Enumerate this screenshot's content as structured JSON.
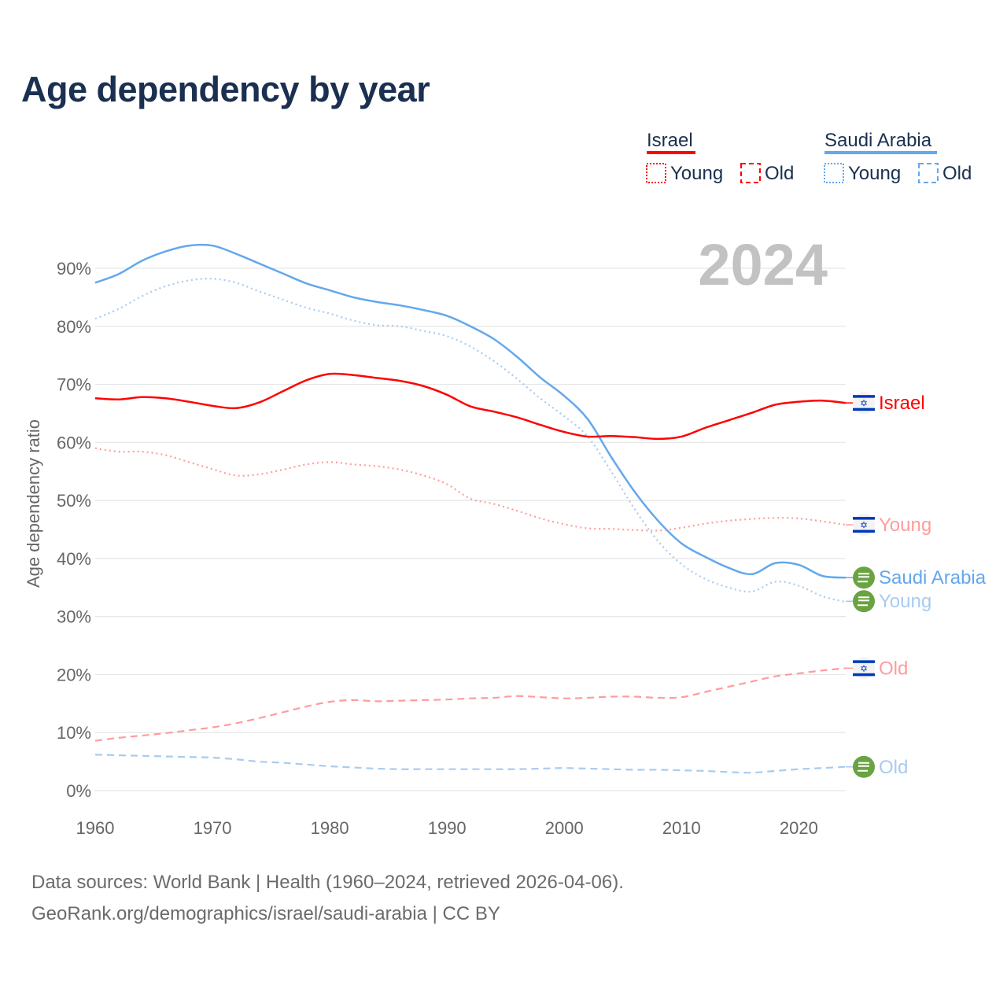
{
  "chart_data": {
    "type": "line",
    "title": "Age dependency by year",
    "ylabel": "Age dependency ratio",
    "xlabel": "",
    "year_overlay": "2024",
    "xlim": [
      1960,
      2024
    ],
    "ylim": [
      0,
      95
    ],
    "xticks": [
      1960,
      1970,
      1980,
      1990,
      2000,
      2010,
      2020
    ],
    "yticks": [
      0,
      10,
      20,
      30,
      40,
      50,
      60,
      70,
      80,
      90
    ],
    "ytick_labels": [
      "0%",
      "10%",
      "20%",
      "30%",
      "40%",
      "50%",
      "60%",
      "70%",
      "80%",
      "90%"
    ],
    "grid": true,
    "legend_position": "top-right",
    "legend": {
      "groups": [
        {
          "country": "Israel",
          "color": "#ff0000",
          "items": [
            "Young",
            "Old"
          ]
        },
        {
          "country": "Saudi Arabia",
          "color": "#63a8ec",
          "items": [
            "Young",
            "Old"
          ]
        }
      ]
    },
    "x": [
      1960,
      1962,
      1964,
      1966,
      1968,
      1970,
      1972,
      1974,
      1976,
      1978,
      1980,
      1982,
      1984,
      1986,
      1988,
      1990,
      1992,
      1994,
      1996,
      1998,
      2000,
      2002,
      2004,
      2006,
      2008,
      2010,
      2012,
      2014,
      2016,
      2018,
      2020,
      2022,
      2024
    ],
    "series": [
      {
        "name": "Saudi Arabia",
        "end_label": "Saudi Arabia",
        "country": "Saudi Arabia",
        "style": "solid",
        "color": "#63a8ec",
        "values": [
          87.5,
          89.0,
          91.3,
          92.9,
          93.9,
          93.9,
          92.5,
          90.8,
          89.1,
          87.4,
          86.2,
          85.0,
          84.2,
          83.6,
          82.8,
          81.8,
          80.0,
          77.8,
          74.7,
          71.1,
          68.0,
          64.0,
          57.5,
          51.5,
          46.5,
          42.6,
          40.3,
          38.4,
          37.3,
          39.2,
          38.9,
          37.0,
          36.7
        ]
      },
      {
        "name": "Saudi Arabia Young",
        "end_label": "Young",
        "country": "Saudi Arabia",
        "style": "dotted",
        "color": "#a8cbf1",
        "values": [
          81.3,
          83.0,
          85.2,
          86.9,
          87.9,
          88.2,
          87.5,
          86.0,
          84.6,
          83.2,
          82.2,
          81.0,
          80.2,
          80.0,
          79.2,
          78.3,
          76.5,
          74.0,
          70.9,
          67.5,
          64.5,
          61.0,
          55.0,
          48.5,
          43.0,
          39.0,
          36.5,
          35.0,
          34.3,
          36.0,
          35.3,
          33.5,
          32.5
        ]
      },
      {
        "name": "Saudi Arabia Old",
        "end_label": "Old",
        "country": "Saudi Arabia",
        "style": "dashed",
        "color": "#a8cbf1",
        "values": [
          6.2,
          6.1,
          6.0,
          5.9,
          5.8,
          5.7,
          5.4,
          5.0,
          4.8,
          4.5,
          4.2,
          4.0,
          3.8,
          3.7,
          3.7,
          3.7,
          3.7,
          3.7,
          3.7,
          3.8,
          3.9,
          3.8,
          3.7,
          3.6,
          3.6,
          3.5,
          3.4,
          3.2,
          3.1,
          3.4,
          3.7,
          3.9,
          4.1
        ]
      },
      {
        "name": "Israel",
        "end_label": "Israel",
        "country": "Israel",
        "style": "solid",
        "color": "#ff0000",
        "values": [
          67.6,
          67.4,
          67.8,
          67.6,
          67.0,
          66.3,
          65.9,
          66.9,
          68.8,
          70.7,
          71.8,
          71.6,
          71.1,
          70.6,
          69.7,
          68.2,
          66.2,
          65.3,
          64.3,
          63.0,
          61.8,
          61.0,
          61.1,
          60.9,
          60.6,
          61.0,
          62.5,
          63.8,
          65.1,
          66.5,
          67.0,
          67.2,
          66.8
        ]
      },
      {
        "name": "Israel Young",
        "end_label": "Young",
        "country": "Israel",
        "style": "dotted",
        "color": "#ff9c9c",
        "values": [
          59.0,
          58.4,
          58.4,
          57.8,
          56.6,
          55.4,
          54.3,
          54.5,
          55.3,
          56.2,
          56.6,
          56.2,
          55.9,
          55.3,
          54.3,
          52.8,
          50.3,
          49.4,
          48.2,
          46.9,
          45.9,
          45.2,
          45.1,
          44.9,
          44.8,
          45.3,
          46.0,
          46.5,
          46.8,
          47.0,
          46.9,
          46.4,
          45.8
        ]
      },
      {
        "name": "Israel Old",
        "end_label": "Old",
        "country": "Israel",
        "style": "dashed",
        "color": "#ff9c9c",
        "values": [
          8.6,
          9.1,
          9.5,
          9.9,
          10.4,
          10.9,
          11.6,
          12.5,
          13.5,
          14.5,
          15.3,
          15.6,
          15.4,
          15.5,
          15.6,
          15.7,
          15.9,
          16.0,
          16.3,
          16.1,
          15.9,
          16.0,
          16.2,
          16.2,
          16.0,
          16.1,
          17.0,
          17.9,
          18.8,
          19.7,
          20.2,
          20.7,
          21.1
        ]
      }
    ]
  },
  "footer": {
    "line1": "Data sources: World Bank | Health (1960–2024, retrieved 2026-04-06).",
    "line2": "GeoRank.org/demographics/israel/saudi-arabia | CC BY"
  },
  "icons": {
    "israel": "israel-flag-icon",
    "saudi": "saudi-flag-icon"
  }
}
